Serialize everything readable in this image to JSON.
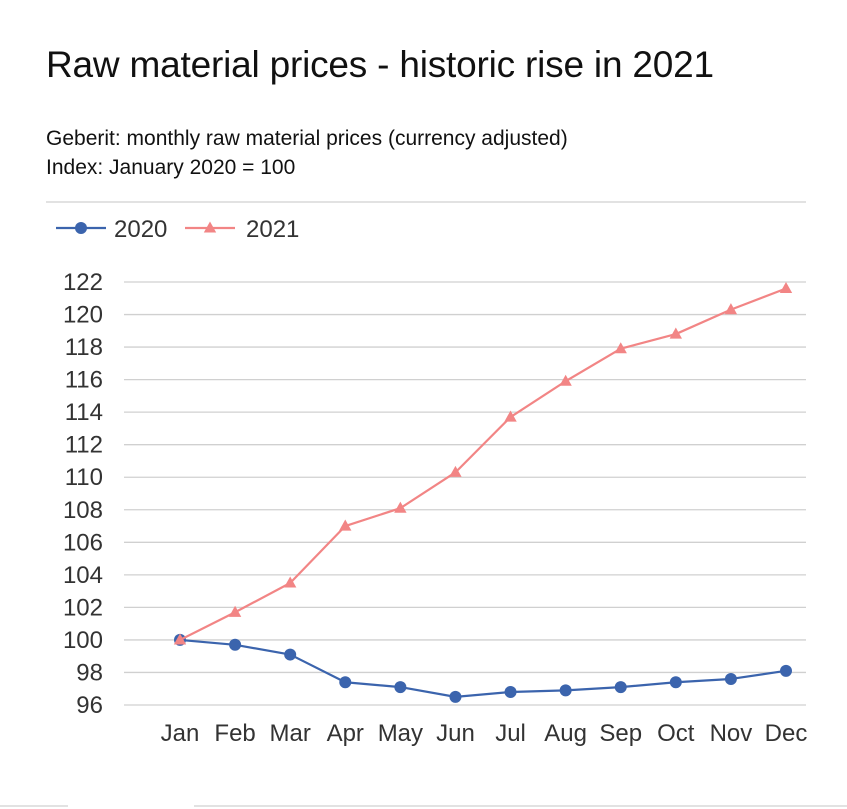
{
  "header": {
    "title": "Raw material prices - historic rise in 2021",
    "subtitle_line1": "Geberit: monthly raw material prices (currency adjusted)",
    "subtitle_line2": "Index: January 2020 = 100"
  },
  "chart_data": {
    "type": "line",
    "title": "Raw material prices - historic rise in 2021",
    "xlabel": "",
    "ylabel": "",
    "categories": [
      "Jan",
      "Feb",
      "Mar",
      "Apr",
      "May",
      "Jun",
      "Jul",
      "Aug",
      "Sep",
      "Oct",
      "Nov",
      "Dec"
    ],
    "ylim": [
      96,
      122
    ],
    "yticks": [
      96,
      98,
      100,
      102,
      104,
      106,
      108,
      110,
      112,
      114,
      116,
      118,
      120,
      122
    ],
    "grid": "horizontal",
    "legend_position": "top-left",
    "series": [
      {
        "name": "2020",
        "color": "#3b64ad",
        "marker": "circle",
        "values": [
          100.0,
          99.7,
          99.1,
          97.4,
          97.1,
          96.5,
          96.8,
          96.9,
          97.1,
          97.4,
          97.6,
          98.1
        ]
      },
      {
        "name": "2021",
        "color": "#f28585",
        "marker": "triangle",
        "values": [
          100.0,
          101.7,
          103.5,
          107.0,
          108.1,
          110.3,
          113.7,
          115.9,
          117.9,
          118.8,
          120.3,
          121.6
        ]
      }
    ]
  }
}
